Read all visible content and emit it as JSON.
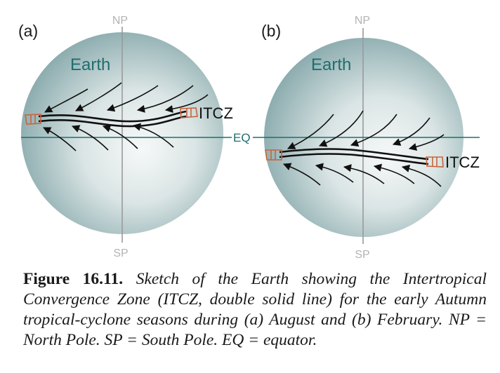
{
  "panel_a": {
    "label": "(a)",
    "north_pole": "NP",
    "south_pole": "SP",
    "earth_label": "Earth",
    "itcz_label": "ITCZ",
    "equator_label": "EQ"
  },
  "panel_b": {
    "label": "(b)",
    "north_pole": "NP",
    "south_pole": "SP",
    "earth_label": "Earth",
    "itcz_label": "ITCZ"
  },
  "caption": {
    "figure_label": "Figure 16.11.",
    "text": "Sketch of the Earth showing the Intertropical Convergence Zone (ITCZ, double solid line) for the early Autumn tropical-cyclone seasons during (a) August and (b) February. NP = North Pole. SP = South Pole. EQ = equator."
  },
  "colors": {
    "globe_light": "#f2f5f5",
    "globe_dark": "#7fa3a6",
    "axis": "#9a9a9a",
    "equator": "#1f6e70",
    "itcz": "#111111",
    "itcz_end": "#c8643c"
  }
}
